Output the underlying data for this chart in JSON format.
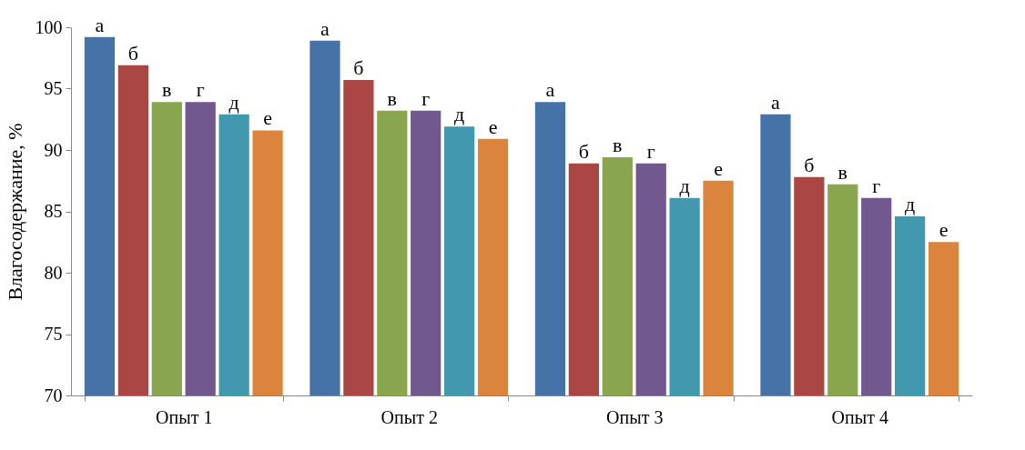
{
  "chart_data": {
    "type": "bar",
    "ylabel": "Влагосодержание, %",
    "categories": [
      "Опыт 1",
      "Опыт 2",
      "Опыт 3",
      "Опыт 4"
    ],
    "series": [
      {
        "name": "а",
        "color": "#4572a7",
        "values": [
          99.2,
          98.9,
          93.9,
          92.9
        ]
      },
      {
        "name": "б",
        "color": "#aa4643",
        "values": [
          96.9,
          95.7,
          88.9,
          87.8
        ]
      },
      {
        "name": "в",
        "color": "#89a54e",
        "values": [
          93.9,
          93.2,
          89.4,
          87.2
        ]
      },
      {
        "name": "г",
        "color": "#71588f",
        "values": [
          93.9,
          93.2,
          88.9,
          86.1
        ]
      },
      {
        "name": "д",
        "color": "#4198af",
        "values": [
          92.9,
          91.9,
          86.1,
          84.6
        ]
      },
      {
        "name": "е",
        "color": "#db843d",
        "values": [
          91.6,
          90.9,
          87.5,
          82.5
        ]
      }
    ],
    "ylim": [
      70,
      100
    ],
    "yticks": [
      70,
      75,
      80,
      85,
      90,
      95,
      100
    ],
    "grid": false,
    "legend": false
  }
}
